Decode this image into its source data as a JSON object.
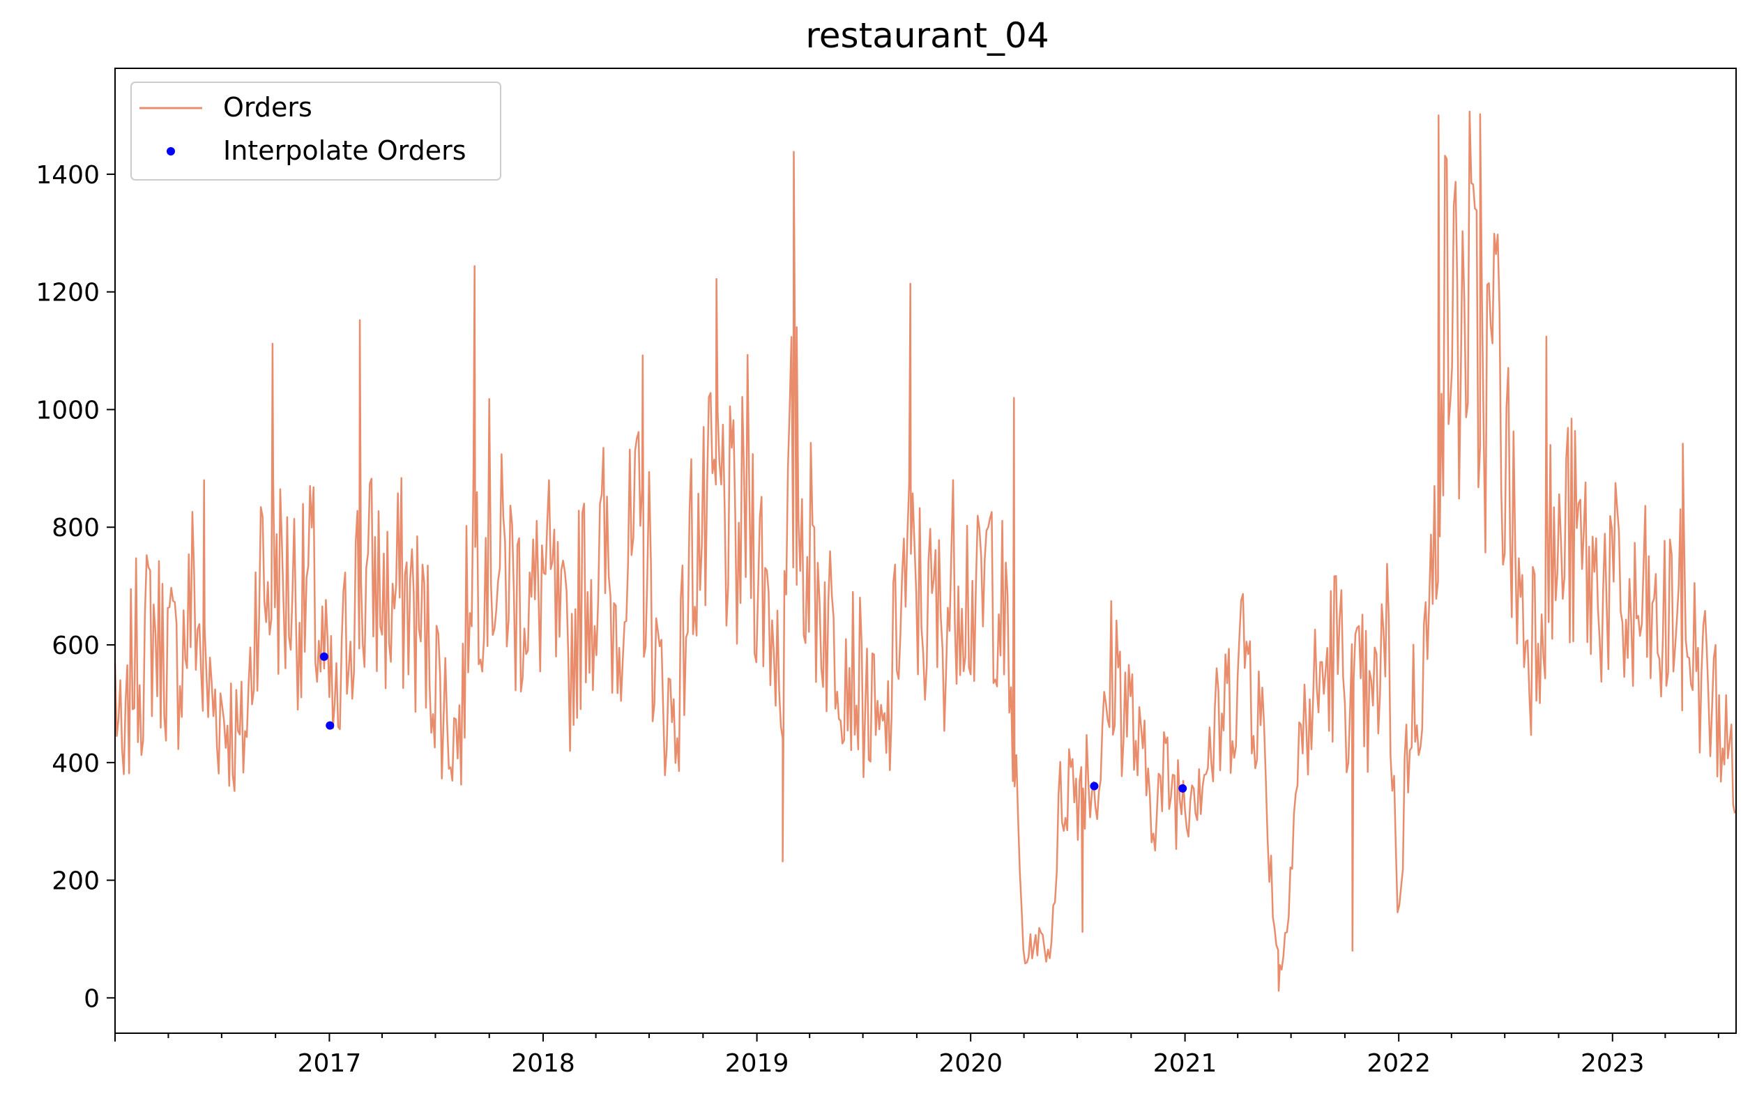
{
  "chart_data": {
    "type": "line",
    "title": "restaurant_04",
    "xlabel": "",
    "ylabel": "",
    "xlim": [
      "2016-01-01",
      "2023-07-31"
    ],
    "ylim": [
      -60,
      1580
    ],
    "x_ticks": [
      "2017",
      "2018",
      "2019",
      "2020",
      "2021",
      "2022",
      "2023"
    ],
    "y_ticks": [
      0,
      200,
      400,
      600,
      800,
      1000,
      1200,
      1400
    ],
    "grid": false,
    "legend_position": "top-left",
    "colors": {
      "orders": "#E98C6B",
      "interpolate": "#0000FF"
    },
    "series": [
      {
        "name": "Orders",
        "style": "line",
        "color": "#E98C6B",
        "x": [
          "2016-01-01",
          "2016-01-15",
          "2016-02-01",
          "2016-02-15",
          "2016-03-01",
          "2016-03-15",
          "2016-04-01",
          "2016-04-15",
          "2016-05-01",
          "2016-05-15",
          "2016-06-01",
          "2016-06-15",
          "2016-07-01",
          "2016-07-15",
          "2016-08-01",
          "2016-08-15",
          "2016-09-01",
          "2016-09-15",
          "2016-10-01",
          "2016-10-15",
          "2016-11-01",
          "2016-11-15",
          "2016-12-01",
          "2016-12-15",
          "2017-01-01",
          "2017-01-15",
          "2017-02-01",
          "2017-02-15",
          "2017-03-01",
          "2017-03-15",
          "2017-04-01",
          "2017-04-15",
          "2017-05-01",
          "2017-05-15",
          "2017-06-01",
          "2017-06-15",
          "2017-07-01",
          "2017-07-15",
          "2017-08-01",
          "2017-08-15",
          "2017-09-01",
          "2017-09-15",
          "2017-10-01",
          "2017-10-15",
          "2017-11-01",
          "2017-11-15",
          "2017-12-01",
          "2017-12-15",
          "2018-01-01",
          "2018-01-15",
          "2018-02-01",
          "2018-02-15",
          "2018-03-01",
          "2018-03-15",
          "2018-04-01",
          "2018-04-15",
          "2018-05-01",
          "2018-05-15",
          "2018-06-01",
          "2018-06-15",
          "2018-07-01",
          "2018-07-15",
          "2018-08-01",
          "2018-08-15",
          "2018-09-01",
          "2018-09-15",
          "2018-10-01",
          "2018-10-15",
          "2018-11-01",
          "2018-11-15",
          "2018-12-01",
          "2018-12-15",
          "2019-01-01",
          "2019-01-15",
          "2019-02-01",
          "2019-02-15",
          "2019-03-01",
          "2019-03-15",
          "2019-04-01",
          "2019-04-15",
          "2019-05-01",
          "2019-05-15",
          "2019-06-01",
          "2019-06-15",
          "2019-07-01",
          "2019-07-15",
          "2019-08-01",
          "2019-08-15",
          "2019-09-01",
          "2019-09-15",
          "2019-10-01",
          "2019-10-15",
          "2019-11-01",
          "2019-11-15",
          "2019-12-01",
          "2019-12-15",
          "2020-01-01",
          "2020-01-15",
          "2020-02-01",
          "2020-02-15",
          "2020-03-01",
          "2020-03-15",
          "2020-04-01",
          "2020-04-15",
          "2020-05-01",
          "2020-05-15",
          "2020-06-01",
          "2020-06-15",
          "2020-07-01",
          "2020-07-15",
          "2020-08-01",
          "2020-08-15",
          "2020-09-01",
          "2020-09-15",
          "2020-10-01",
          "2020-10-15",
          "2020-11-01",
          "2020-11-15",
          "2020-12-01",
          "2020-12-15",
          "2021-01-01",
          "2021-01-15",
          "2021-02-01",
          "2021-02-15",
          "2021-03-01",
          "2021-03-15",
          "2021-04-01",
          "2021-04-15",
          "2021-05-01",
          "2021-05-15",
          "2021-06-01",
          "2021-06-15",
          "2021-07-01",
          "2021-07-15",
          "2021-08-01",
          "2021-08-15",
          "2021-09-01",
          "2021-09-15",
          "2021-10-01",
          "2021-10-15",
          "2021-11-01",
          "2021-11-15",
          "2021-12-01",
          "2021-12-15",
          "2022-01-01",
          "2022-01-15",
          "2022-02-01",
          "2022-02-15",
          "2022-03-01",
          "2022-03-15",
          "2022-04-01",
          "2022-04-15",
          "2022-05-01",
          "2022-05-15",
          "2022-06-01",
          "2022-06-15",
          "2022-07-01",
          "2022-07-15",
          "2022-08-01",
          "2022-08-15",
          "2022-09-01",
          "2022-09-15",
          "2022-10-01",
          "2022-10-15",
          "2022-11-01",
          "2022-11-15",
          "2022-12-01",
          "2022-12-15",
          "2023-01-01",
          "2023-01-15",
          "2023-02-01",
          "2023-02-15",
          "2023-03-01",
          "2023-03-15",
          "2023-04-01",
          "2023-04-15",
          "2023-05-01",
          "2023-05-15",
          "2023-06-01",
          "2023-06-15",
          "2023-07-01",
          "2023-07-15",
          "2023-07-31"
        ],
        "y": [
          540,
          360,
          600,
          560,
          640,
          610,
          590,
          560,
          620,
          700,
          530,
          510,
          490,
          470,
          420,
          480,
          740,
          690,
          760,
          680,
          710,
          650,
          720,
          600,
          510,
          460,
          640,
          710,
          680,
          720,
          690,
          650,
          700,
          680,
          640,
          610,
          560,
          500,
          450,
          460,
          820,
          760,
          800,
          720,
          740,
          680,
          700,
          650,
          720,
          680,
          600,
          560,
          650,
          720,
          690,
          760,
          640,
          700,
          740,
          780,
          720,
          540,
          500,
          470,
          640,
          800,
          760,
          820,
          850,
          790,
          740,
          880,
          760,
          700,
          620,
          560,
          900,
          820,
          760,
          700,
          640,
          620,
          590,
          560,
          520,
          480,
          420,
          470,
          680,
          720,
          700,
          640,
          660,
          620,
          700,
          760,
          680,
          640,
          740,
          720,
          600,
          420,
          60,
          90,
          100,
          70,
          320,
          380,
          360,
          400,
          360,
          420,
          580,
          520,
          480,
          400,
          360,
          330,
          380,
          350,
          360,
          380,
          400,
          420,
          460,
          500,
          560,
          610,
          520,
          440,
          140,
          40,
          240,
          420,
          480,
          520,
          560,
          600,
          540,
          500,
          520,
          460,
          560,
          600,
          120,
          440,
          520,
          590,
          680,
          1140,
          1180,
          1100,
          1220,
          1080,
          1020,
          1150,
          920,
          800,
          640,
          620,
          700,
          760,
          720,
          800,
          760,
          740,
          690,
          720,
          700,
          660,
          620,
          640,
          660,
          600,
          620,
          680,
          640,
          600,
          560,
          520,
          480,
          420,
          400
        ],
        "spikes": [
          {
            "x": "2016-06-01",
            "y": 880
          },
          {
            "x": "2016-09-26",
            "y": 1112
          },
          {
            "x": "2017-02-22",
            "y": 1152
          },
          {
            "x": "2017-09-06",
            "y": 1244
          },
          {
            "x": "2018-06-20",
            "y": 1092
          },
          {
            "x": "2018-10-24",
            "y": 1222
          },
          {
            "x": "2019-03-05",
            "y": 1438
          },
          {
            "x": "2019-02-14",
            "y": 232
          },
          {
            "x": "2019-09-20",
            "y": 1214
          },
          {
            "x": "2019-03-10",
            "y": 1140
          },
          {
            "x": "2020-03-15",
            "y": 1020
          },
          {
            "x": "2020-07-10",
            "y": 112
          },
          {
            "x": "2021-06-10",
            "y": 12
          },
          {
            "x": "2021-10-14",
            "y": 80
          },
          {
            "x": "2022-03-10",
            "y": 1500
          },
          {
            "x": "2022-05-20",
            "y": 1502
          },
          {
            "x": "2022-09-10",
            "y": 1124
          },
          {
            "x": "2023-05-01",
            "y": 942
          }
        ]
      },
      {
        "name": "Interpolate Orders",
        "style": "points",
        "color": "#0000FF",
        "x": [
          "2016-12-23",
          "2017-01-02",
          "2020-07-30",
          "2020-12-28"
        ],
        "y": [
          580,
          463,
          360,
          356
        ]
      }
    ]
  }
}
